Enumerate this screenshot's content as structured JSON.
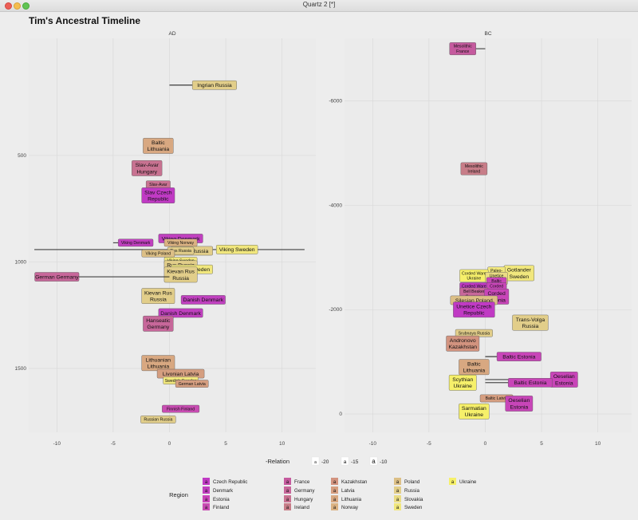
{
  "window": {
    "title": "Quartz 2 [*]"
  },
  "chart_data": {
    "type": "scatter",
    "title": "Tim's Ancestral Timeline",
    "panels": [
      {
        "name": "AD",
        "x_ticks": [
          -10,
          -5,
          0,
          5,
          10
        ],
        "y_ticks": [
          {
            "value": 500,
            "label": "500"
          },
          {
            "value": 1000,
            "label": "1000"
          },
          {
            "value": 1500,
            "label": "1500"
          }
        ],
        "xlim": [
          -12.5,
          13.0
        ],
        "ylim": [
          -50,
          1800
        ],
        "points": [
          {
            "label": "Ingrian Russia",
            "x": 4,
            "y": 170,
            "line_from": 0,
            "country": "Russia",
            "relation": -15
          },
          {
            "label": "Baltic\nLithuania",
            "x": -1,
            "y": 455,
            "country": "Lithuania",
            "relation": -15
          },
          {
            "label": "Slav-Avar\nHungary",
            "x": -2,
            "y": 560,
            "country": "Hungary",
            "relation": -15
          },
          {
            "label": "Slav-Avar\nHungary",
            "x": -1,
            "y": 648,
            "line_from": 0,
            "country": "Hungary",
            "relation": -20
          },
          {
            "label": "Slav Czech\nRepublic",
            "x": -1,
            "y": 688,
            "country": "Czech Republic",
            "relation": -15
          },
          {
            "label": "Viking Denmark",
            "x": 1,
            "y": 890,
            "country": "Denmark",
            "relation": -15
          },
          {
            "label": "Viking Denmark",
            "x": -3,
            "y": 910,
            "line_from": -5,
            "country": "Denmark",
            "relation": -20
          },
          {
            "label": "Viking Norway",
            "x": 1,
            "y": 910,
            "country": "Norway",
            "relation": -20
          },
          {
            "label": "Viking Sweden",
            "x": 6,
            "y": 942,
            "line_from": -12,
            "line_to": 12,
            "country": "Sweden",
            "relation": -15
          },
          {
            "label": "Viking Russia",
            "x": 2,
            "y": 948,
            "country": "Russia",
            "relation": -15
          },
          {
            "label": "Rus Russia",
            "x": 1,
            "y": 948,
            "country": "Russia",
            "relation": -20
          },
          {
            "label": "Viking Poland",
            "x": -1,
            "y": 960,
            "country": "Poland",
            "relation": -20
          },
          {
            "label": "Viking Sweden",
            "x": 1,
            "y": 995,
            "country": "Sweden",
            "relation": -20
          },
          {
            "label": "Rus Russia",
            "x": 1,
            "y": 1015,
            "country": "Russia",
            "relation": -15
          },
          {
            "label": "Viking Sweden",
            "x": 2,
            "y": 1035,
            "country": "Sweden",
            "relation": -15
          },
          {
            "label": "Kievan Rus\nRussia",
            "x": 1,
            "y": 1060,
            "country": "Russia",
            "relation": -15
          },
          {
            "label": "German Germany",
            "x": -10,
            "y": 1070,
            "line_to": 0,
            "country": "Germany",
            "relation": -15
          },
          {
            "label": "Kievan Rus\nRussia",
            "x": -1,
            "y": 1160,
            "country": "Russia",
            "relation": -15
          },
          {
            "label": "Danish Denmark",
            "x": 3,
            "y": 1178,
            "country": "Denmark",
            "relation": -15
          },
          {
            "label": "Danish Denmark",
            "x": 1,
            "y": 1240,
            "country": "Denmark",
            "relation": -15
          },
          {
            "label": "Hanseatic\nGermany",
            "x": -1,
            "y": 1290,
            "country": "Germany",
            "relation": -15
          },
          {
            "label": "Lithuanian\nLithuania",
            "x": -1,
            "y": 1475,
            "country": "Lithuania",
            "relation": -15
          },
          {
            "label": "Livonian Latvia",
            "x": 1,
            "y": 1525,
            "country": "Latvia",
            "relation": -15
          },
          {
            "label": "Swedish Sweden",
            "x": 1,
            "y": 1557,
            "country": "Sweden",
            "relation": -20
          },
          {
            "label": "German Latvia",
            "x": 2,
            "y": 1572,
            "country": "Latvia",
            "relation": -20
          },
          {
            "label": "Finnish Finland",
            "x": 1,
            "y": 1690,
            "country": "Finland",
            "relation": -20
          },
          {
            "label": "Russian Russia",
            "x": -1,
            "y": 1740,
            "country": "Russia",
            "relation": -20
          }
        ]
      },
      {
        "name": "BC",
        "x_ticks": [
          -10,
          -5,
          0,
          5,
          10
        ],
        "y_ticks": [
          {
            "value": -6000,
            "label": "-6000"
          },
          {
            "value": -4000,
            "label": "-4000"
          },
          {
            "value": -2000,
            "label": "-2000"
          },
          {
            "value": 0,
            "label": "0"
          }
        ],
        "xlim": [
          -12.5,
          13.0
        ],
        "ylim": [
          -7200,
          350
        ],
        "points": [
          {
            "label": "Mesolithic\nFrance",
            "x": -2,
            "y": -7000,
            "line_to": 0,
            "country": "France",
            "relation": -20
          },
          {
            "label": "Mesolithic\nIreland",
            "x": -1,
            "y": -4700,
            "country": "Ireland",
            "relation": -20
          },
          {
            "label": "Gotlander\nSweden",
            "x": 3,
            "y": -2700,
            "country": "Sweden",
            "relation": -15
          },
          {
            "label": "Paleo-\nSweden",
            "x": 1,
            "y": -2700,
            "country": "Sweden",
            "relation": -20
          },
          {
            "label": "Corded Ware\nUkraine",
            "x": -1,
            "y": -2650,
            "country": "Ukraine",
            "relation": -20
          },
          {
            "label": "Unetice\nSlovakia",
            "x": 1,
            "y": -2600,
            "country": "Slovakia",
            "relation": -20
          },
          {
            "label": "Baltic\nEstonia",
            "x": 1,
            "y": -2500,
            "country": "Estonia",
            "relation": -20
          },
          {
            "label": "Corded Ware\nCzech",
            "x": -1,
            "y": -2400,
            "country": "Czech Republic",
            "relation": -20
          },
          {
            "label": "Corded\nEstonia",
            "x": 1,
            "y": -2400,
            "country": "Estonia",
            "relation": -20
          },
          {
            "label": "Bell Beaker\nGermany",
            "x": -1,
            "y": -2300,
            "country": "Germany",
            "relation": -20
          },
          {
            "label": "Corded\nEstonia",
            "x": 1,
            "y": -2250,
            "country": "Estonia",
            "relation": -15
          },
          {
            "label": "Silesian Poland",
            "x": -1,
            "y": -2180,
            "country": "Poland",
            "relation": -15
          },
          {
            "label": "Unetice Czech\nRepublic",
            "x": -1,
            "y": -2000,
            "country": "Czech Republic",
            "relation": -15
          },
          {
            "label": "Trans-Volga\nRussia",
            "x": 4,
            "y": -1750,
            "country": "Russia",
            "relation": -15
          },
          {
            "label": "Srubnaya Russia",
            "x": -1,
            "y": -1550,
            "country": "Russia",
            "relation": -20
          },
          {
            "label": "Andronovo\nKazakhstan",
            "x": -2,
            "y": -1350,
            "country": "Kazakhstan",
            "relation": -15
          },
          {
            "label": "Baltic Estonia",
            "x": 3,
            "y": -1100,
            "line_from": 0,
            "country": "Estonia",
            "relation": -15
          },
          {
            "label": "Baltic\nLithuania",
            "x": -1,
            "y": -900,
            "country": "Lithuania",
            "relation": -15
          },
          {
            "label": "Oeselian\nEstonia",
            "x": 7,
            "y": -660,
            "line_from": 0,
            "country": "Estonia",
            "relation": -15
          },
          {
            "label": "Scythian\nUkraine",
            "x": -2,
            "y": -600,
            "country": "Ukraine",
            "relation": -15
          },
          {
            "label": "Baltic Estonia",
            "x": 4,
            "y": -600,
            "line_from": 0,
            "country": "Estonia",
            "relation": -15
          },
          {
            "label": "Baltic Latvia",
            "x": 1,
            "y": -300,
            "line_to": 3,
            "country": "Latvia",
            "relation": -20
          },
          {
            "label": "Oeselian\nEstonia",
            "x": 3,
            "y": -200,
            "country": "Estonia",
            "relation": -15
          },
          {
            "label": "Sarmatian\nUkraine",
            "x": -1,
            "y": -50,
            "country": "Ukraine",
            "relation": -15
          }
        ]
      }
    ],
    "xlabel": "-Relation",
    "size_legend": [
      {
        "value": -20,
        "glyph": "a",
        "label": "-20"
      },
      {
        "value": -15,
        "glyph": "a",
        "label": "-15"
      },
      {
        "value": -10,
        "glyph": "a",
        "label": "-10"
      }
    ],
    "color_legend_title": "Region",
    "regions": [
      {
        "name": "Czech Republic",
        "color": "#c03ac4"
      },
      {
        "name": "Denmark",
        "color": "#c040bf"
      },
      {
        "name": "Estonia",
        "color": "#c845b8"
      },
      {
        "name": "Finland",
        "color": "#c84cb2"
      },
      {
        "name": "France",
        "color": "#c55a9e"
      },
      {
        "name": "Germany",
        "color": "#c7679a"
      },
      {
        "name": "Hungary",
        "color": "#c87291"
      },
      {
        "name": "Ireland",
        "color": "#c77d88"
      },
      {
        "name": "Kazakhstan",
        "color": "#d2937f"
      },
      {
        "name": "Latvia",
        "color": "#d59e80"
      },
      {
        "name": "Lithuania",
        "color": "#d8a881"
      },
      {
        "name": "Norway",
        "color": "#dbb282"
      },
      {
        "name": "Poland",
        "color": "#dcbf86"
      },
      {
        "name": "Russia",
        "color": "#e2ce8a"
      },
      {
        "name": "Slovakia",
        "color": "#eadc84"
      },
      {
        "name": "Sweden",
        "color": "#f1e77d"
      },
      {
        "name": "Ukraine",
        "color": "#f6f06a"
      }
    ],
    "legend_glyph": "a"
  }
}
